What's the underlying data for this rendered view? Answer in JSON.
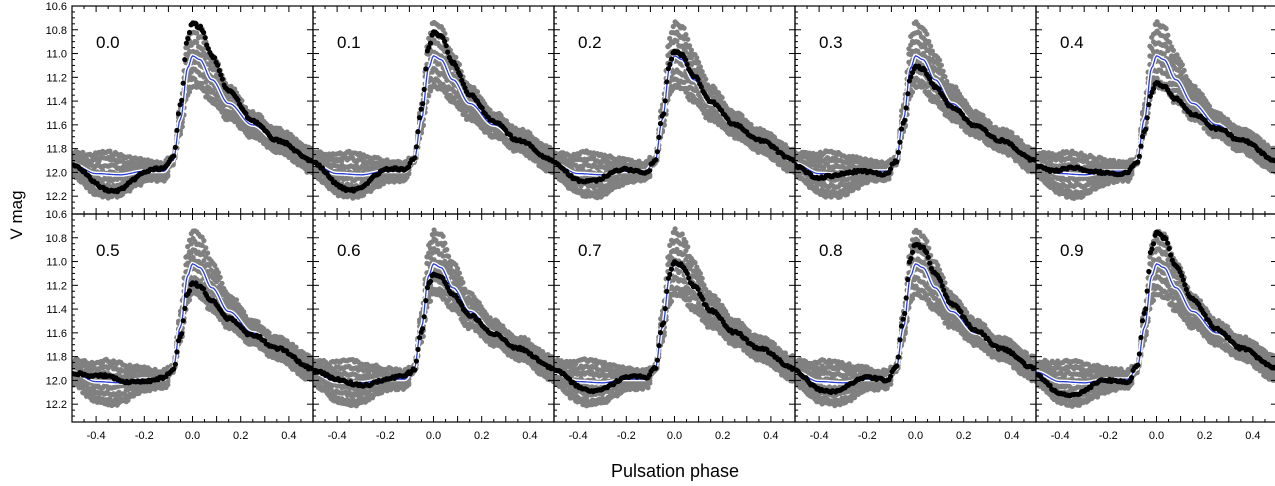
{
  "figure": {
    "ylabel": "V mag",
    "xlabel": "Pulsation phase"
  },
  "chart_data": {
    "type": "scatter",
    "layout": "2x5 small multiples",
    "xlim": [
      -0.5,
      0.5
    ],
    "ylim": [
      12.35,
      10.6
    ],
    "y_inverted": true,
    "xticks": [
      "-0.4",
      "-0.2",
      "0.0",
      "0.2",
      "0.4"
    ],
    "yticks": [
      "10.6",
      "10.8",
      "11.0",
      "11.2",
      "11.4",
      "11.6",
      "11.8",
      "12.0",
      "12.2"
    ],
    "grid": false,
    "colors": {
      "highlight": "#000000",
      "background_points": "#808080",
      "mean_curve": "#2b3fd8"
    },
    "mean_curve": {
      "x": [
        -0.5,
        -0.4,
        -0.3,
        -0.2,
        -0.12,
        -0.08,
        -0.05,
        -0.02,
        0.0,
        0.03,
        0.08,
        0.15,
        0.25,
        0.35,
        0.5
      ],
      "y": [
        11.93,
        12.01,
        12.02,
        11.99,
        11.99,
        11.9,
        11.55,
        11.12,
        11.02,
        11.05,
        11.22,
        11.42,
        11.6,
        11.73,
        11.9
      ]
    },
    "panels": [
      {
        "label": "0.0",
        "peak": 10.74,
        "min_before_rise": 12.12
      },
      {
        "label": "0.1",
        "peak": 10.82,
        "min_before_rise": 12.1
      },
      {
        "label": "0.2",
        "peak": 10.98,
        "min_before_rise": 12.03
      },
      {
        "label": "0.3",
        "peak": 11.1,
        "min_before_rise": 12.01
      },
      {
        "label": "0.4",
        "peak": 11.25,
        "min_before_rise": 11.96
      },
      {
        "label": "0.5",
        "peak": 11.18,
        "min_before_rise": 11.96
      },
      {
        "label": "0.6",
        "peak": 11.1,
        "min_before_rise": 11.99
      },
      {
        "label": "0.7",
        "peak": 11.0,
        "min_before_rise": 12.04
      },
      {
        "label": "0.8",
        "peak": 10.85,
        "min_before_rise": 12.05
      },
      {
        "label": "0.9",
        "peak": 10.76,
        "min_before_rise": 12.1
      }
    ]
  }
}
